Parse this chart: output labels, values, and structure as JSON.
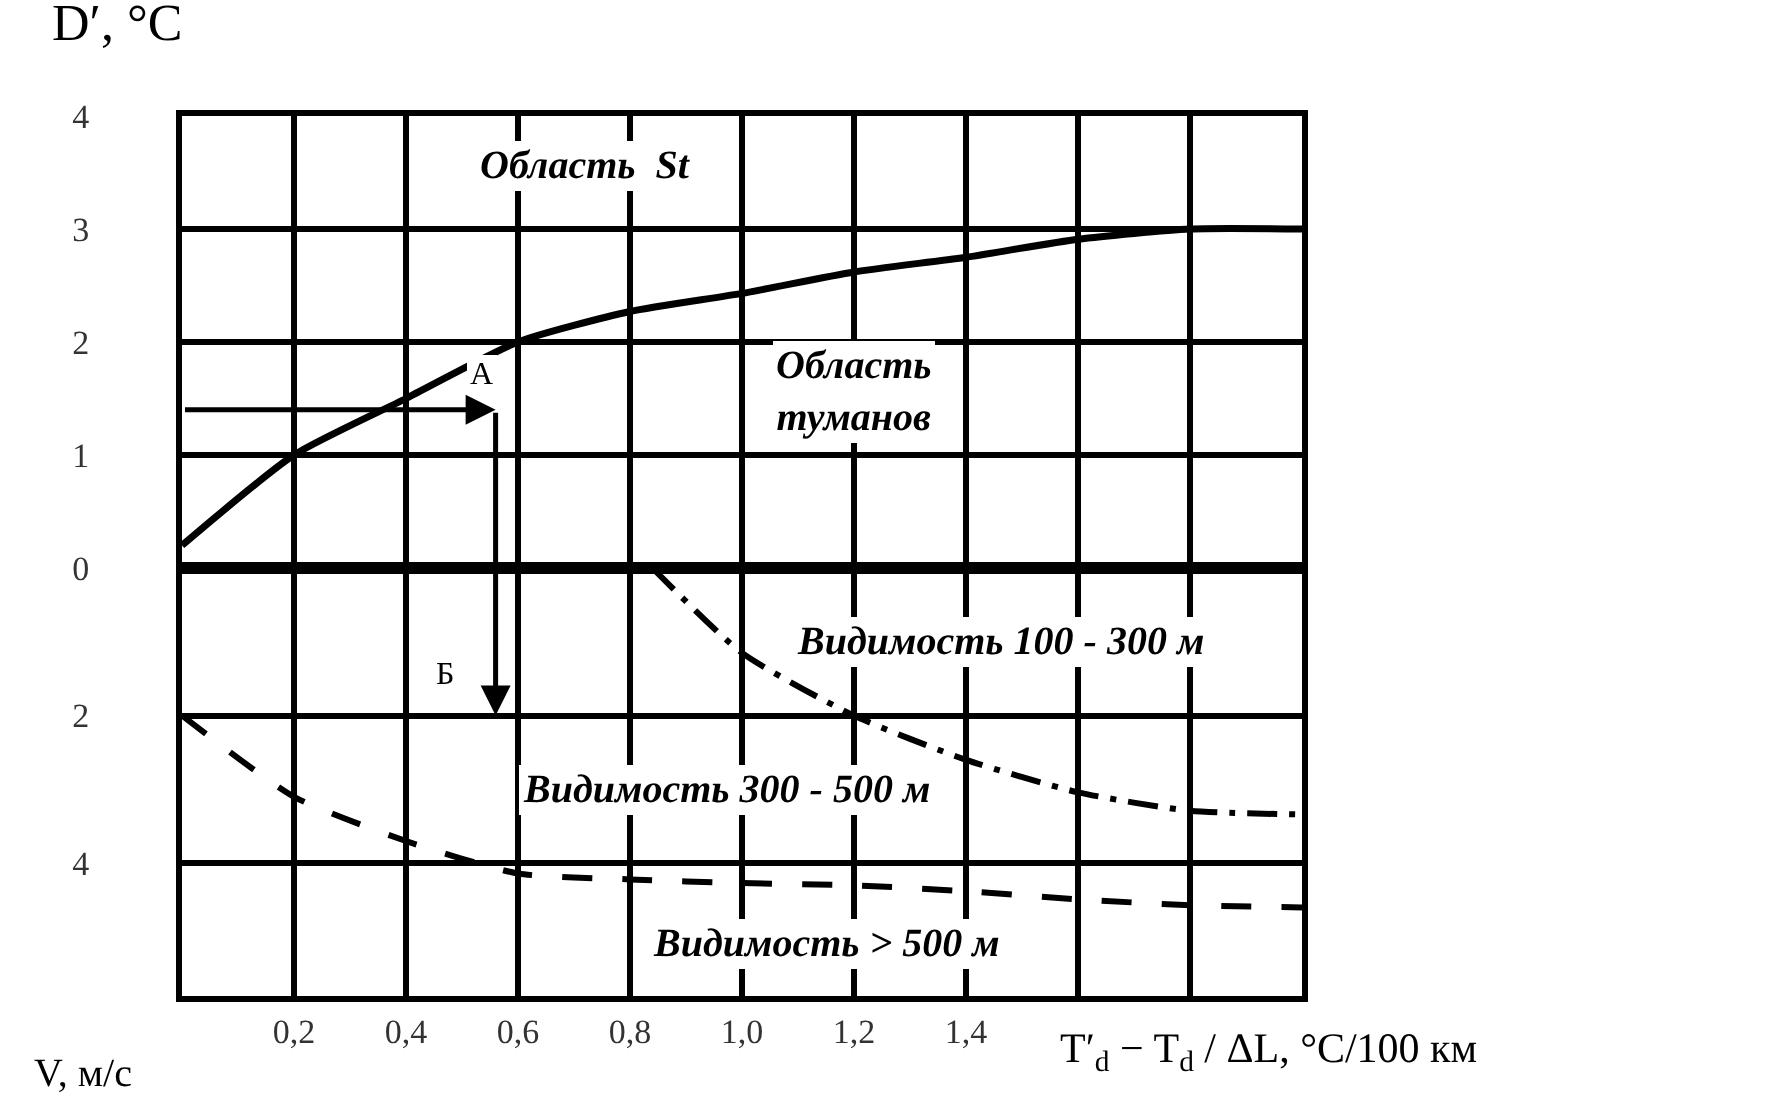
{
  "chart_data": [
    {
      "type": "line",
      "ylabel": "D′, °C",
      "xlim": [
        0,
        2.0
      ],
      "ylim": [
        0,
        4
      ],
      "xticks": [
        {
          "value": 0,
          "label": null
        },
        {
          "value": 0.2,
          "label": null
        },
        {
          "value": 0.4,
          "label": null
        },
        {
          "value": 0.6,
          "label": null
        },
        {
          "value": 0.8,
          "label": null
        },
        {
          "value": 1.0,
          "label": null
        },
        {
          "value": 1.2,
          "label": null
        },
        {
          "value": 1.4,
          "label": null
        },
        {
          "value": 1.6,
          "label": null
        },
        {
          "value": 1.8,
          "label": null
        },
        {
          "value": 2.0,
          "label": null
        }
      ],
      "yticks": [
        0,
        1,
        2,
        3,
        4
      ],
      "tick_labels": "y",
      "grid": true,
      "series": [
        {
          "color": "#000000",
          "line_style": "solid",
          "x": [
            0,
            0.2,
            0.4,
            0.6,
            0.8,
            1.0,
            1.2,
            1.4,
            1.6,
            1.8,
            2.0
          ],
          "values": [
            0.2,
            1.0,
            1.5,
            2.0,
            2.27,
            2.43,
            2.62,
            2.75,
            2.91,
            3.0,
            3.0
          ]
        }
      ],
      "annotations": [
        "Область  St",
        "Область\nтуманов",
        "А"
      ]
    },
    {
      "type": "line",
      "ylabel": "V, м/с",
      "xlabel": "T′$_{d}$ − T$_{d}$ / ΔL, °C/100 км",
      "xlim": [
        0,
        2.0
      ],
      "ylim": [
        5.8,
        0
      ],
      "xticks": [
        {
          "value": 0,
          "label": null
        },
        {
          "value": 0.2,
          "label": "0,2"
        },
        {
          "value": 0.4,
          "label": "0,4"
        },
        {
          "value": 0.6,
          "label": "0,6"
        },
        {
          "value": 0.8,
          "label": "0,8"
        },
        {
          "value": 1.0,
          "label": "1,0"
        },
        {
          "value": 1.2,
          "label": "1,2"
        },
        {
          "value": 1.4,
          "label": "1,4"
        },
        {
          "value": 1.6,
          "label": null
        },
        {
          "value": 1.8,
          "label": null
        },
        {
          "value": 2.0,
          "label": null
        }
      ],
      "yticks": [
        {
          "value": 0,
          "label": null
        },
        2,
        4
      ],
      "grid": true,
      "series": [
        {
          "color": "#000000",
          "line_style": "dashdot",
          "x": [
            0.84,
            1.0,
            1.2,
            1.4,
            1.6,
            1.8,
            2.0
          ],
          "values": [
            0,
            1.15,
            2.0,
            2.6,
            3.04,
            3.29,
            3.34
          ]
        },
        {
          "color": "#000000",
          "line_style": "dashed",
          "x": [
            0,
            0.2,
            0.4,
            0.6,
            0.8,
            1.0,
            1.2,
            1.4,
            1.6,
            1.8,
            2.0
          ],
          "values": [
            2.0,
            3.1,
            3.7,
            4.14,
            4.22,
            4.27,
            4.3,
            4.38,
            4.49,
            4.57,
            4.6
          ]
        }
      ],
      "annotations": [
        "Видимость 100 - 300 м",
        "Видимость 300 - 500 м",
        "Видимость > 500 м",
        "Б"
      ]
    }
  ]
}
